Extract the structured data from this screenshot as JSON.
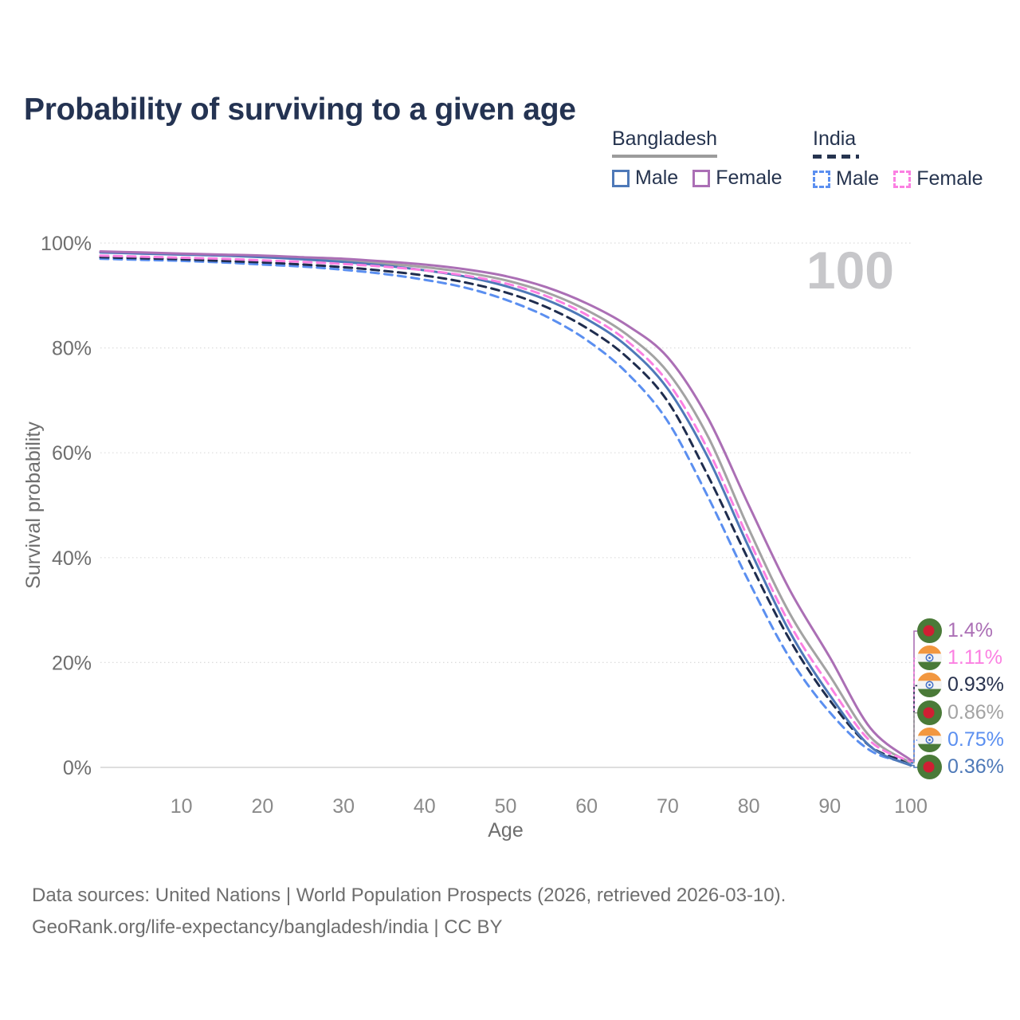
{
  "page_title": "Probability of surviving to a given age",
  "legend": {
    "bangladesh": {
      "title": "Bangladesh",
      "underline_color": "#9c9c9c",
      "items": [
        {
          "label": "Male",
          "series_id": "bd-male",
          "color": "#4e79b8",
          "dashed": false
        },
        {
          "label": "Female",
          "series_id": "bd-female",
          "color": "#ab6fb5",
          "dashed": false
        }
      ]
    },
    "india": {
      "title": "India",
      "underline_color": "#26344f",
      "items": [
        {
          "label": "Male",
          "series_id": "in-male",
          "color": "#5b8ff0",
          "dashed": true
        },
        {
          "label": "Female",
          "series_id": "in-female",
          "color": "#fb80e2",
          "dashed": true
        }
      ]
    }
  },
  "watermark": "100",
  "chart_data": {
    "type": "line",
    "title": "Probability of surviving to a given age",
    "xlabel": "Age",
    "ylabel": "Survival probability",
    "x_range": [
      0,
      100
    ],
    "y_range": [
      0,
      100
    ],
    "x_ticks": [
      10,
      20,
      30,
      40,
      50,
      60,
      70,
      80,
      90,
      100
    ],
    "y_ticks": [
      0,
      20,
      40,
      60,
      80,
      100
    ],
    "y_tick_suffix": "%",
    "grid": "horizontal-dotted",
    "legend_position": "top-right",
    "x": [
      0,
      5,
      10,
      15,
      20,
      25,
      30,
      35,
      40,
      45,
      50,
      55,
      60,
      65,
      70,
      75,
      80,
      85,
      90,
      95,
      100
    ],
    "series": [
      {
        "id": "in-male",
        "name": "India Male",
        "country": "India",
        "sex": "Male",
        "color": "#5b8ff0",
        "dashed": true,
        "values": [
          97.0,
          96.8,
          96.6,
          96.3,
          95.9,
          95.5,
          94.9,
          94.1,
          93.0,
          91.5,
          89.2,
          86.0,
          81.5,
          75.2,
          66.0,
          51.5,
          35.5,
          21.0,
          10.5,
          3.2,
          0.75
        ]
      },
      {
        "id": "in-total",
        "name": "India",
        "country": "India",
        "sex": "Both",
        "color": "#1f2d4e",
        "dashed": true,
        "values": [
          97.3,
          97.1,
          96.9,
          96.6,
          96.3,
          95.9,
          95.4,
          94.7,
          93.8,
          92.5,
          90.6,
          87.8,
          83.8,
          78.2,
          69.8,
          55.5,
          39.5,
          24.5,
          12.8,
          4.0,
          0.93
        ]
      },
      {
        "id": "bd-total",
        "name": "Bangladesh",
        "country": "Bangladesh",
        "sex": "Both",
        "color": "#a3a3a3",
        "dashed": false,
        "values": [
          98.3,
          98.1,
          97.9,
          97.7,
          97.4,
          97.1,
          96.7,
          96.1,
          95.4,
          94.4,
          92.9,
          90.6,
          87.2,
          82.5,
          75.4,
          63.0,
          45.5,
          29.5,
          17.5,
          5.8,
          0.86
        ]
      },
      {
        "id": "bd-male",
        "name": "Bangladesh Male",
        "country": "Bangladesh",
        "sex": "Male",
        "color": "#4e79b8",
        "dashed": false,
        "values": [
          98.2,
          98.0,
          97.8,
          97.6,
          97.3,
          96.9,
          96.4,
          95.7,
          94.8,
          93.6,
          91.8,
          89.2,
          85.5,
          80.3,
          72.2,
          59.0,
          42.0,
          26.0,
          13.8,
          4.0,
          0.36
        ]
      },
      {
        "id": "in-female",
        "name": "India Female",
        "country": "India",
        "sex": "Female",
        "color": "#fb80e2",
        "dashed": true,
        "values": [
          97.6,
          97.4,
          97.2,
          97.0,
          96.7,
          96.4,
          96.0,
          95.5,
          94.8,
          93.8,
          92.3,
          89.9,
          86.3,
          81.3,
          73.5,
          60.5,
          43.5,
          27.5,
          15.5,
          5.0,
          1.11
        ]
      },
      {
        "id": "bd-female",
        "name": "Bangladesh Female",
        "country": "Bangladesh",
        "sex": "Female",
        "color": "#ab6fb5",
        "dashed": false,
        "values": [
          98.4,
          98.2,
          98.0,
          97.8,
          97.6,
          97.3,
          97.0,
          96.5,
          95.9,
          95.0,
          93.7,
          91.6,
          88.5,
          84.3,
          78.2,
          66.5,
          50.0,
          34.0,
          21.0,
          7.5,
          1.4
        ]
      }
    ],
    "end_labels": [
      {
        "series_id": "bd-female",
        "flag": "bangladesh",
        "label": "1.4%",
        "color": "#ab6fb5",
        "value": 1.4
      },
      {
        "series_id": "in-female",
        "flag": "india",
        "label": "1.11%",
        "color": "#fb80e2",
        "value": 1.11
      },
      {
        "series_id": "in-total",
        "flag": "india",
        "label": "0.93%",
        "color": "#28324e",
        "value": 0.93
      },
      {
        "series_id": "bd-total",
        "flag": "bangladesh",
        "label": "0.86%",
        "color": "#a3a3a3",
        "value": 0.86
      },
      {
        "series_id": "in-male",
        "flag": "india",
        "label": "0.75%",
        "color": "#5b8ff0",
        "value": 0.75
      },
      {
        "series_id": "bd-male",
        "flag": "bangladesh",
        "label": "0.36%",
        "color": "#4e79b8",
        "value": 0.36
      }
    ],
    "annotation": "100"
  },
  "flag_colors": {
    "bangladesh": {
      "field": "#4a7a38",
      "disc": "#d01f33"
    },
    "india": {
      "saffron": "#f2973f",
      "white": "#f4f4f4",
      "green": "#4a7a38",
      "chakra": "#4a74c8"
    }
  },
  "footer": {
    "line1": "Data sources: United Nations | World Population Prospects (2026, retrieved 2026-03-10).",
    "line2": "GeoRank.org/life-expectancy/bangladesh/india | CC BY"
  }
}
